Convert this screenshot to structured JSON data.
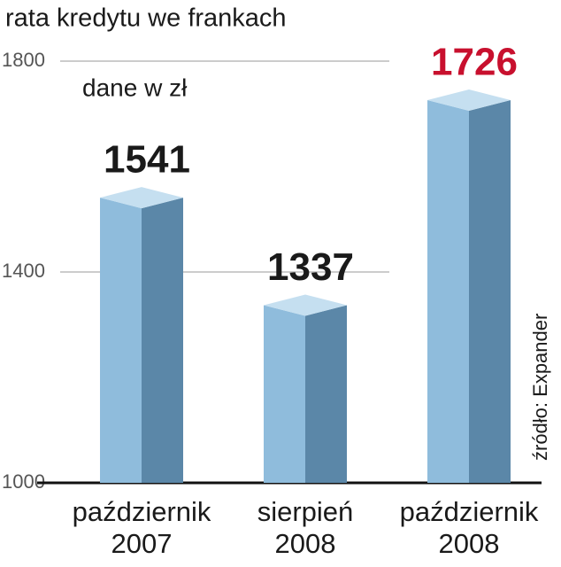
{
  "chart_data": {
    "type": "bar3d",
    "title": "rata kredytu we frankach",
    "subtitle": "dane w zł",
    "source": "źródło: Expander",
    "categories": [
      "październik\n2007",
      "sierpień\n2008",
      "październik\n2008"
    ],
    "values": [
      1541,
      1337,
      1726
    ],
    "label_colors": [
      "#1a1a1a",
      "#1a1a1a",
      "#c8102e"
    ],
    "colors": {
      "front": "#8fbcdc",
      "side": "#5b87a8",
      "top": "#c5dff0"
    },
    "ylim": [
      1000,
      1800
    ],
    "yticks": [
      1000,
      1400,
      1800
    ],
    "grid": true
  }
}
